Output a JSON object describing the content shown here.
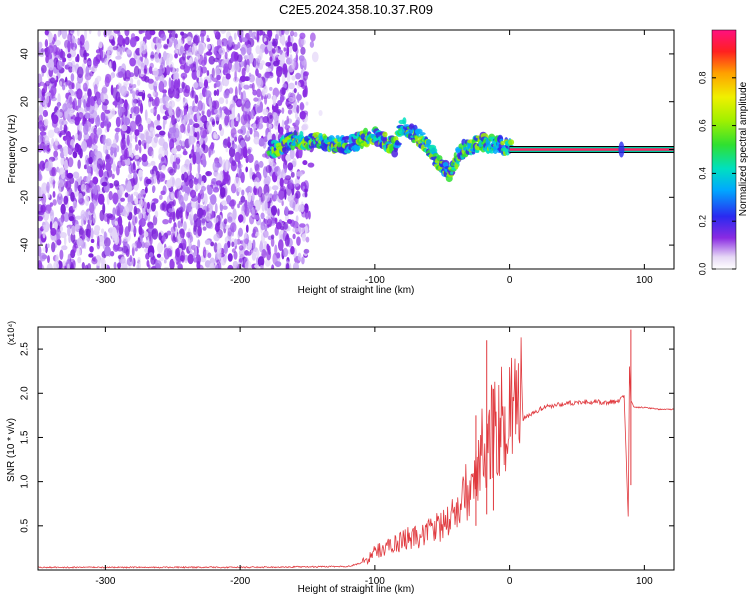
{
  "figure": {
    "title": "C2E5.2024.358.10.37.R09"
  },
  "chart_data": [
    {
      "type": "heatmap",
      "title": "C2E5.2024.358.10.37.R09",
      "xlabel": "Height of straight line (km)",
      "ylabel": "Frequency (Hz)",
      "xlim": [
        -350,
        122
      ],
      "ylim": [
        -50,
        50
      ],
      "xticks": [
        -300,
        -200,
        -100,
        0,
        100
      ],
      "yticks": [
        -40,
        -20,
        0,
        20,
        40
      ],
      "colorbar": {
        "label": "Normalized spectral amplitude",
        "range": [
          0,
          1
        ],
        "ticks": [
          0.0,
          0.2,
          0.4,
          0.6,
          0.8
        ]
      },
      "features": {
        "noise_region_x": [
          -350,
          -150
        ],
        "signal_track": [
          {
            "x": -175,
            "y": 0
          },
          {
            "x": -160,
            "y": 4
          },
          {
            "x": -140,
            "y": 3
          },
          {
            "x": -120,
            "y": 2
          },
          {
            "x": -100,
            "y": 6
          },
          {
            "x": -85,
            "y": 1
          },
          {
            "x": -80,
            "y": 10
          },
          {
            "x": -65,
            "y": 4
          },
          {
            "x": -55,
            "y": -3
          },
          {
            "x": -45,
            "y": -10
          },
          {
            "x": -35,
            "y": 0
          },
          {
            "x": -20,
            "y": 3
          },
          {
            "x": 0,
            "y": 1
          },
          {
            "x": 85,
            "y": 0
          },
          {
            "x": 122,
            "y": 0
          }
        ]
      }
    },
    {
      "type": "line",
      "xlabel": "Height of straight line (km)",
      "ylabel": "SNR (10 * v/v)",
      "ylabel_multiplier": "(x10⁴)",
      "xlim": [
        -350,
        122
      ],
      "ylim": [
        0,
        2.75
      ],
      "xticks": [
        -300,
        -200,
        -100,
        0,
        100
      ],
      "yticks": [
        0.5,
        1.0,
        1.5,
        2.0,
        2.5
      ],
      "series": [
        {
          "color": "#e0393e",
          "x": [
            -350,
            -200,
            -120,
            -105,
            -100,
            -90,
            -80,
            -70,
            -60,
            -50,
            -40,
            -30,
            -25,
            -20,
            -15,
            -10,
            -5,
            0,
            5,
            10,
            20,
            30,
            40,
            50,
            60,
            70,
            80,
            85,
            88,
            89,
            90,
            92,
            95,
            100,
            110,
            122
          ],
          "y": [
            0.03,
            0.03,
            0.04,
            0.1,
            0.18,
            0.22,
            0.28,
            0.32,
            0.36,
            0.42,
            0.55,
            0.8,
            1.0,
            1.2,
            1.3,
            1.38,
            1.45,
            1.5,
            1.6,
            1.7,
            1.8,
            1.86,
            1.88,
            1.9,
            1.9,
            1.9,
            1.9,
            1.98,
            0.6,
            2.3,
            1.92,
            1.85,
            1.84,
            1.84,
            1.82,
            1.82
          ]
        }
      ],
      "peaks": [
        {
          "x": -17,
          "y": 2.6
        },
        {
          "x": -25,
          "y": 1.75
        },
        {
          "x": -12,
          "y": 2.05
        },
        {
          "x": 90,
          "y": 2.72
        }
      ]
    }
  ],
  "colors": {
    "noise": "#8a2be2",
    "line": "#e0393e",
    "axes": "#000000"
  }
}
